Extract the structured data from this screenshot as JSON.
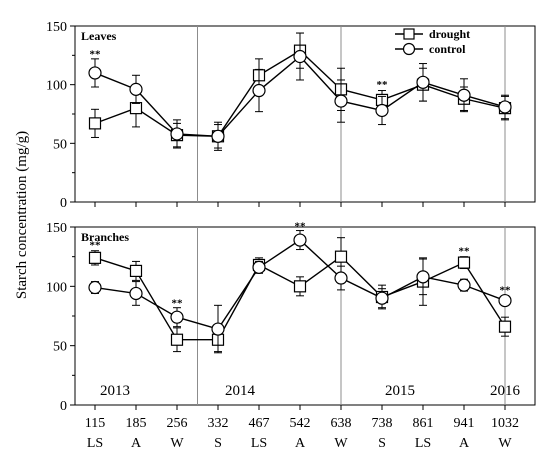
{
  "figure": {
    "ylabel": "Starch concentration (mg/g)",
    "x_labels": [
      "115",
      "185",
      "256",
      "332",
      "467",
      "542",
      "638",
      "738",
      "861",
      "941",
      "1032"
    ],
    "season_labels": [
      "LS",
      "A",
      "W",
      "S",
      "LS",
      "A",
      "W",
      "S",
      "LS",
      "A",
      "W"
    ],
    "years": [
      "2013",
      "2014",
      "2015",
      "2016"
    ],
    "colors": {
      "line": "#000000",
      "divider": "#8c8c8c",
      "marker_fill": "#ffffff",
      "significance": "#555555"
    }
  },
  "chart_data": [
    {
      "type": "line",
      "panel_title": "Leaves",
      "x": [
        115,
        185,
        256,
        332,
        467,
        542,
        638,
        738,
        861,
        941,
        1032
      ],
      "ylim": [
        0,
        150
      ],
      "yticks": [
        0,
        50,
        100,
        150
      ],
      "legend": {
        "placement": "top-right"
      },
      "series": [
        {
          "name": "drought",
          "marker": "square",
          "values": [
            67,
            80,
            57,
            56,
            108,
            129,
            96,
            87,
            100,
            88,
            80
          ],
          "errors": [
            12,
            16,
            10,
            10,
            14,
            15,
            18,
            8,
            14,
            10,
            10
          ]
        },
        {
          "name": "control",
          "marker": "circle",
          "values": [
            110,
            96,
            58,
            56,
            95,
            124,
            86,
            78,
            102,
            91,
            81
          ],
          "errors": [
            12,
            12,
            12,
            12,
            18,
            20,
            18,
            12,
            16,
            14,
            10
          ]
        }
      ],
      "significance": [
        {
          "x": 115,
          "value": 123,
          "label": "**"
        },
        {
          "x": 738,
          "value": 97,
          "label": "**"
        }
      ]
    },
    {
      "type": "line",
      "panel_title": "Branches",
      "x": [
        115,
        185,
        256,
        332,
        467,
        542,
        638,
        738,
        861,
        941,
        1032
      ],
      "ylim": [
        0,
        150
      ],
      "yticks": [
        0,
        50,
        100,
        150
      ],
      "series": [
        {
          "name": "drought",
          "marker": "square",
          "values": [
            124,
            113,
            55,
            55,
            118,
            100,
            125,
            91,
            104,
            120,
            66
          ],
          "errors": [
            6,
            8,
            10,
            10,
            6,
            8,
            16,
            10,
            20,
            5,
            8
          ]
        },
        {
          "name": "control",
          "marker": "circle",
          "values": [
            99,
            94,
            74,
            64,
            116,
            139,
            107,
            90,
            108,
            101,
            88
          ],
          "errors": [
            5,
            10,
            8,
            20,
            5,
            8,
            10,
            8,
            15,
            5,
            4
          ]
        }
      ],
      "significance": [
        {
          "x": 115,
          "value": 132,
          "label": "**"
        },
        {
          "x": 256,
          "value": 83,
          "label": "**"
        },
        {
          "x": 542,
          "value": 148,
          "label": "**"
        },
        {
          "x": 941,
          "value": 127,
          "label": "**"
        },
        {
          "x": 1032,
          "value": 94,
          "label": "**"
        }
      ]
    }
  ]
}
